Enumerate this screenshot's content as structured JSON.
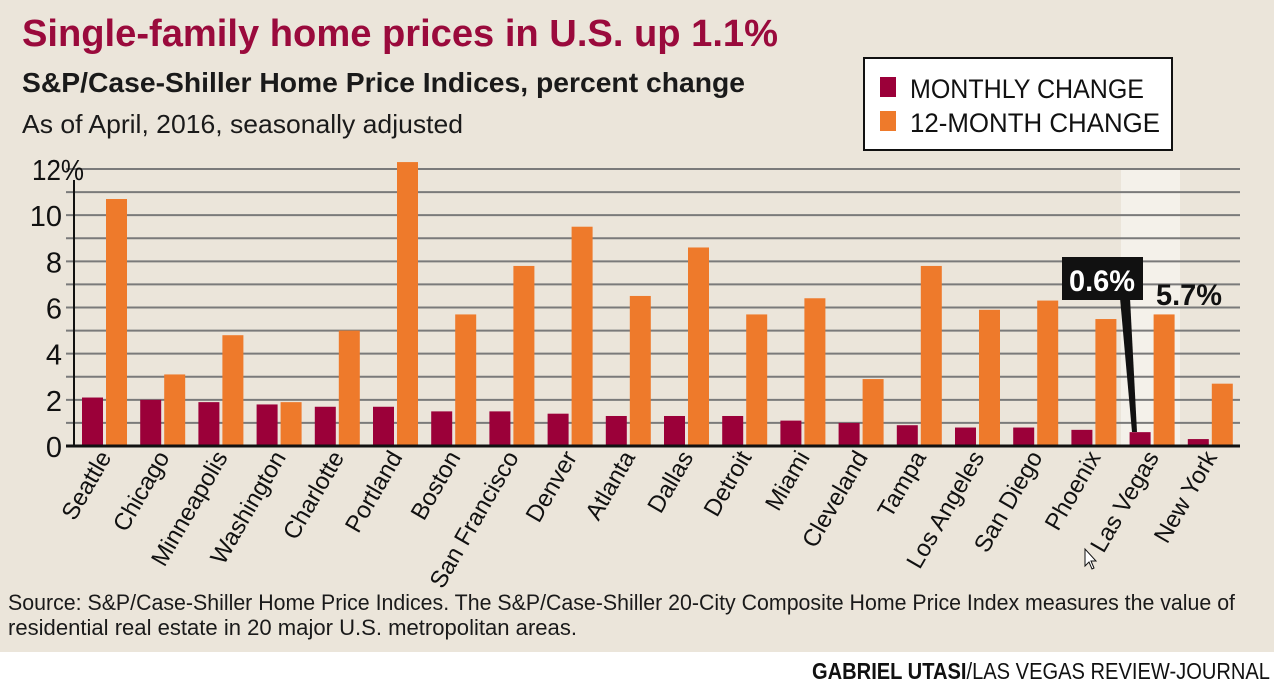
{
  "title": "Single-family home prices in U.S. up 1.1%",
  "subtitle": "S&P/Case-Shiller Home Price Indices, percent change",
  "note": "As of April, 2016, seasonally adjusted",
  "source_line1": "Source: S&P/Case-Shiller Home Price Indices. The S&P/Case-Shiller 20-City Composite Home Price Index measures the value of",
  "source_line2": "residential real estate in 20 major U.S. metropolitan areas.",
  "credit_name": "GABRIEL UTASI",
  "credit_org": "/LAS VEGAS REVIEW-JOURNAL",
  "colors": {
    "monthly": "#9b0039",
    "twelve_month": "#ee7a2b",
    "title": "#9a0a3c",
    "background": "#ebe5da",
    "highlight": "#f4f1ea"
  },
  "chart_data": {
    "type": "bar",
    "categories": [
      "Seattle",
      "Chicago",
      "Minneapolis",
      "Washington",
      "Charlotte",
      "Portland",
      "Boston",
      "San Francisco",
      "Denver",
      "Atlanta",
      "Dallas",
      "Detroit",
      "Miami",
      "Cleveland",
      "Tampa",
      "Los Angeles",
      "San Diego",
      "Phoenix",
      "Las Vegas",
      "New York"
    ],
    "series": [
      {
        "name": "MONTHLY CHANGE",
        "values": [
          2.1,
          2.0,
          1.9,
          1.8,
          1.7,
          1.7,
          1.5,
          1.5,
          1.4,
          1.3,
          1.3,
          1.3,
          1.1,
          1.0,
          0.9,
          0.8,
          0.8,
          0.7,
          0.6,
          0.3
        ]
      },
      {
        "name": "12-MONTH CHANGE",
        "values": [
          10.7,
          3.1,
          4.8,
          1.9,
          5.0,
          12.3,
          5.7,
          7.8,
          9.5,
          6.5,
          8.6,
          5.7,
          6.4,
          2.9,
          7.8,
          5.9,
          6.3,
          5.5,
          5.7,
          2.7
        ]
      }
    ],
    "ylim": [
      0,
      12
    ],
    "yticks": [
      "0",
      "2",
      "4",
      "6",
      "8",
      "10",
      "12%"
    ],
    "grid": true,
    "legend": "top-right",
    "highlight_category": "Las Vegas",
    "annotations": {
      "monthly_callout": "0.6%",
      "twelve_month_label": "5.7%"
    }
  }
}
